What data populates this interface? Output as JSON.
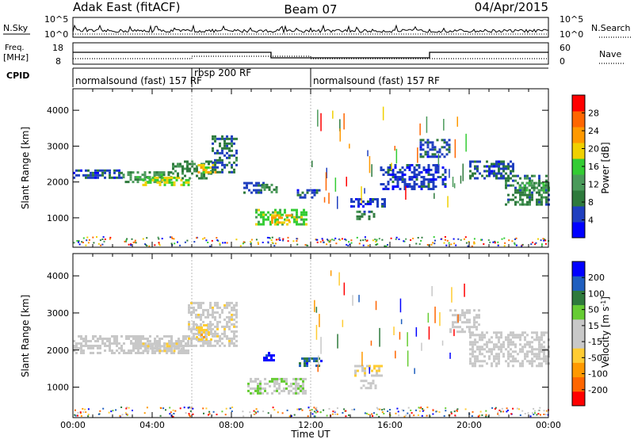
{
  "header": {
    "title": "Adak East (fitACF)",
    "beam": "Beam 07",
    "date": "04/Apr/2015"
  },
  "top_panels": {
    "nsky_label": "N.Sky",
    "nsky_ticks": [
      "10^5",
      "10^0"
    ],
    "nsearch_label": "N.Search",
    "freq_label": "Freq.",
    "freq_unit": "[MHz]",
    "freq_ticks": [
      "18",
      "8"
    ],
    "nave_label": "Nave",
    "nave_ticks": [
      "60",
      "0"
    ],
    "cpid_label": "CPID",
    "cpid_segments": [
      {
        "label": "normalsound (fast) 157 RF",
        "start_h": 0,
        "end_h": 6
      },
      {
        "label": "rbsp 200 RF",
        "start_h": 6,
        "end_h": 12
      },
      {
        "label": "normalsound (fast) 157 RF",
        "start_h": 12,
        "end_h": 24
      }
    ]
  },
  "colors": {
    "power_scale": [
      "#0000ff",
      "#1f3fbf",
      "#2e7a3c",
      "#4a9a5a",
      "#33cc33",
      "#f0d000",
      "#ff9900",
      "#ff6600",
      "#ff0000"
    ],
    "velocity_scale": [
      "#ff0000",
      "#ff6600",
      "#ff9900",
      "#ffcc33",
      "#c8c8c8",
      "#c8c8c8",
      "#66cc33",
      "#2e7a3c",
      "#1f5fbf",
      "#0000ff"
    ]
  },
  "chart_data": [
    {
      "type": "heatmap",
      "name": "power",
      "ylabel": "Slant Range [km]",
      "ylim": [
        180,
        4600
      ],
      "yticks": [
        1000,
        2000,
        3000,
        4000
      ],
      "xlim": [
        0,
        24
      ],
      "colorbar_label": "Power [dB]",
      "colorbar_ticks": [
        "28",
        "24",
        "20",
        "16",
        "12",
        "8",
        "4"
      ],
      "colorbar_range": [
        0,
        32
      ],
      "regions": [
        {
          "t0": 0.0,
          "t1": 2.5,
          "r0": 2100,
          "r1": 2350,
          "value": 6
        },
        {
          "t0": 2.5,
          "t1": 5.0,
          "r0": 2000,
          "r1": 2300,
          "value": 12
        },
        {
          "t0": 3.5,
          "t1": 5.8,
          "r0": 1900,
          "r1": 2150,
          "value": 18
        },
        {
          "t0": 5.0,
          "t1": 7.0,
          "r0": 2100,
          "r1": 2600,
          "value": 10
        },
        {
          "t0": 6.3,
          "t1": 7.2,
          "r0": 2250,
          "r1": 2500,
          "value": 20
        },
        {
          "t0": 7.0,
          "t1": 8.3,
          "r0": 2300,
          "r1": 3300,
          "value": 8
        },
        {
          "t0": 8.6,
          "t1": 9.6,
          "r0": 1700,
          "r1": 2000,
          "value": 6
        },
        {
          "t0": 9.5,
          "t1": 10.3,
          "r0": 1700,
          "r1": 1950,
          "value": 10
        },
        {
          "t0": 9.2,
          "t1": 11.8,
          "r0": 800,
          "r1": 1250,
          "value": 16
        },
        {
          "t0": 10.0,
          "t1": 11.0,
          "r0": 900,
          "r1": 1100,
          "value": 22
        },
        {
          "t0": 11.3,
          "t1": 12.5,
          "r0": 1600,
          "r1": 1800,
          "value": 6
        },
        {
          "t0": 14.0,
          "t1": 15.8,
          "r0": 1350,
          "r1": 1550,
          "value": 5
        },
        {
          "t0": 14.3,
          "t1": 15.2,
          "r0": 1000,
          "r1": 1200,
          "value": 9
        },
        {
          "t0": 15.5,
          "t1": 18.8,
          "r0": 1800,
          "r1": 2500,
          "value": 5
        },
        {
          "t0": 17.5,
          "t1": 19.0,
          "r0": 2700,
          "r1": 3200,
          "value": 6
        },
        {
          "t0": 20.0,
          "t1": 22.2,
          "r0": 2100,
          "r1": 2600,
          "value": 6
        },
        {
          "t0": 21.8,
          "t1": 24.0,
          "r0": 1400,
          "r1": 2200,
          "value": 9
        },
        {
          "t0": 22.5,
          "t1": 24.0,
          "r0": 1800,
          "r1": 2000,
          "value": 13
        }
      ]
    },
    {
      "type": "heatmap",
      "name": "velocity",
      "ylabel": "Slant Range [km]",
      "ylim": [
        180,
        4600
      ],
      "yticks": [
        1000,
        2000,
        3000,
        4000
      ],
      "xlim": [
        0,
        24
      ],
      "xlabel": "Time UT",
      "xticks": [
        "00:00",
        "04:00",
        "08:00",
        "12:00",
        "16:00",
        "20:00",
        "00:00"
      ],
      "colorbar_label": "Velocity [m s^-1]",
      "colorbar_ticks": [
        "200",
        "100",
        "50",
        "15",
        "-15",
        "-50",
        "-100",
        "-200"
      ],
      "colorbar_range": [
        -250,
        250
      ],
      "regions": [
        {
          "t0": 0.0,
          "t1": 5.8,
          "r0": 1950,
          "r1": 2400,
          "value": 0
        },
        {
          "t0": 3.5,
          "t1": 5.5,
          "r0": 2000,
          "r1": 2200,
          "value": -30
        },
        {
          "t0": 5.8,
          "t1": 8.3,
          "r0": 2100,
          "r1": 3300,
          "value": -10
        },
        {
          "t0": 6.2,
          "t1": 7.0,
          "r0": 2300,
          "r1": 2700,
          "value": -70
        },
        {
          "t0": 9.6,
          "t1": 10.2,
          "r0": 1700,
          "r1": 1950,
          "value": 230
        },
        {
          "t0": 8.8,
          "t1": 11.8,
          "r0": 850,
          "r1": 1250,
          "value": 35
        },
        {
          "t0": 11.4,
          "t1": 12.5,
          "r0": 1550,
          "r1": 1800,
          "value": 160
        },
        {
          "t0": 14.2,
          "t1": 15.6,
          "r0": 1300,
          "r1": 1600,
          "value": -40
        },
        {
          "t0": 14.5,
          "t1": 15.3,
          "r0": 1000,
          "r1": 1200,
          "value": 10
        },
        {
          "t0": 20.0,
          "t1": 24.0,
          "r0": 1600,
          "r1": 2500,
          "value": 0
        },
        {
          "t0": 19.0,
          "t1": 20.5,
          "r0": 2500,
          "r1": 3100,
          "value": -5
        }
      ]
    }
  ]
}
